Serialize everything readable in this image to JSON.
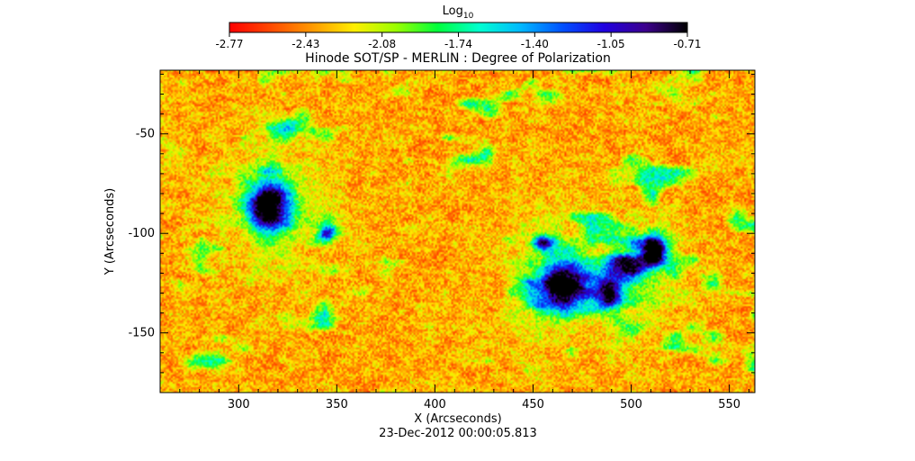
{
  "chart_data": {
    "type": "heatmap",
    "title": "Hinode SOT/SP - MERLIN : Degree of Polarization",
    "xlabel": "X (Arcseconds)",
    "ylabel": "Y (Arcseconds)",
    "timestamp": "23-Dec-2012 00:00:05.813",
    "colorbar": {
      "label_base": "Log",
      "label_sub": "10",
      "range": [
        -2.77,
        -0.71
      ],
      "ticks": [
        "-2.77",
        "-2.43",
        "-2.08",
        "-1.74",
        "-1.40",
        "-1.05",
        "-0.71"
      ],
      "colormap": [
        "#ff0000",
        "#ff4a00",
        "#ff9a00",
        "#ffee00",
        "#9aff00",
        "#00ff3c",
        "#00ffd0",
        "#00b8ff",
        "#0050ff",
        "#2000e0",
        "#3c008c",
        "#000000"
      ]
    },
    "xlim": [
      260,
      563
    ],
    "ylim": [
      -180,
      -18
    ],
    "x_ticks": [
      300,
      350,
      400,
      450,
      500,
      550
    ],
    "y_ticks": [
      -50,
      -100,
      -150
    ],
    "features": [
      {
        "type": "pore",
        "x": 316,
        "y": -86,
        "rx": 10,
        "ry": 12,
        "strength": 1.0
      },
      {
        "type": "pore",
        "x": 465,
        "y": -127,
        "rx": 12,
        "ry": 11,
        "strength": 1.0
      },
      {
        "type": "pore",
        "x": 498,
        "y": -117,
        "rx": 11,
        "ry": 7,
        "strength": 0.8
      },
      {
        "type": "pore",
        "x": 512,
        "y": -108,
        "rx": 5,
        "ry": 8,
        "strength": 0.7
      },
      {
        "type": "pore",
        "x": 488,
        "y": -130,
        "rx": 6,
        "ry": 8,
        "strength": 0.75
      },
      {
        "type": "pore",
        "x": 455,
        "y": -105,
        "rx": 5,
        "ry": 4,
        "strength": 0.7
      },
      {
        "type": "pore",
        "x": 345,
        "y": -100,
        "rx": 4,
        "ry": 4,
        "strength": 0.65
      }
    ]
  }
}
